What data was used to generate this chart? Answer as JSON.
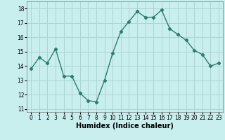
{
  "x": [
    0,
    1,
    2,
    3,
    4,
    5,
    6,
    7,
    8,
    9,
    10,
    11,
    12,
    13,
    14,
    15,
    16,
    17,
    18,
    19,
    20,
    21,
    22,
    23
  ],
  "y": [
    13.8,
    14.6,
    14.2,
    15.2,
    13.3,
    13.3,
    12.1,
    11.6,
    11.5,
    13.0,
    14.9,
    16.4,
    17.1,
    17.8,
    17.4,
    17.4,
    17.9,
    16.6,
    16.2,
    15.8,
    15.1,
    14.8,
    14.0,
    14.2
  ],
  "line_color": "#2d7d6e",
  "marker": "D",
  "markersize": 2.2,
  "linewidth": 1.0,
  "bg_color": "#c8eeee",
  "grid_color": "#aed4d4",
  "xlabel": "Humidex (Indice chaleur)",
  "xlabel_fontsize": 7,
  "ylabel_ticks": [
    11,
    12,
    13,
    14,
    15,
    16,
    17,
    18
  ],
  "xtick_labels": [
    "0",
    "1",
    "2",
    "3",
    "4",
    "5",
    "6",
    "7",
    "8",
    "9",
    "10",
    "11",
    "12",
    "13",
    "14",
    "15",
    "16",
    "17",
    "18",
    "19",
    "20",
    "21",
    "22",
    "23"
  ],
  "ylim": [
    10.8,
    18.5
  ],
  "xlim": [
    -0.5,
    23.5
  ],
  "tick_fontsize": 5.5,
  "xlabel_fontweight": "bold"
}
